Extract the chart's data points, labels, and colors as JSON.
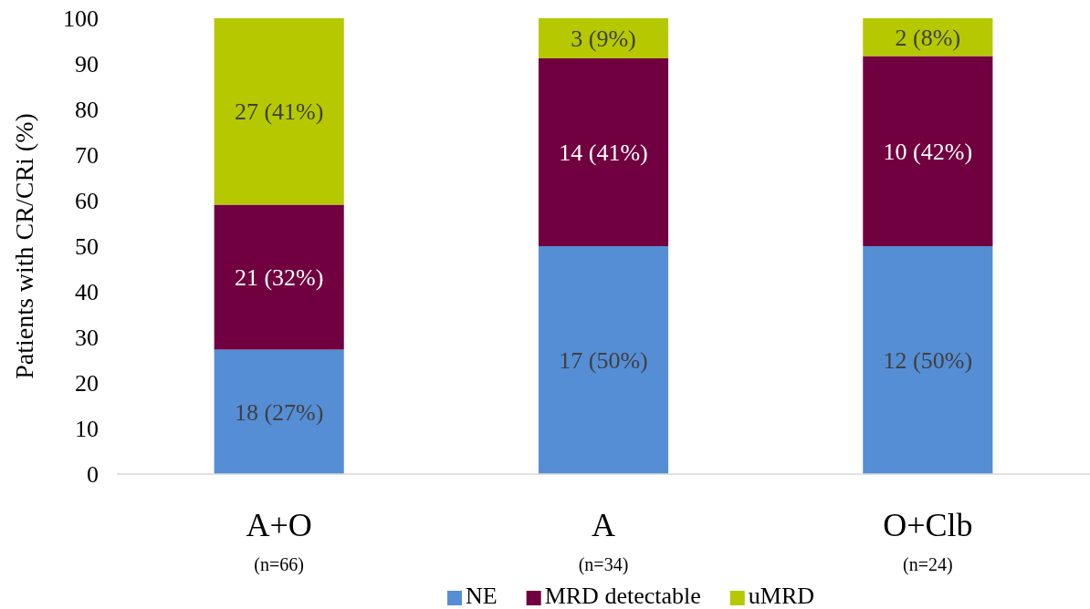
{
  "chart_data": {
    "type": "bar",
    "stacked": true,
    "ylabel": "Patients with CR/CRi (%)",
    "categories": [
      "A+O\n(n=66)",
      "A\n(n=34)",
      "O+Clb\n(n=24)"
    ],
    "series": [
      {
        "name": "NE",
        "color": "#558ed5",
        "values": [
          27.3,
          50,
          50
        ],
        "value_labels": [
          "18 (27%)",
          "17 (50%)",
          "12 (50%)"
        ]
      },
      {
        "name": "MRD detectable",
        "color": "#70003f",
        "values": [
          31.8,
          41.2,
          41.7
        ],
        "value_labels": [
          "21 (32%)",
          "14 (41%)",
          "10 (42%)"
        ]
      },
      {
        "name": "uMRD",
        "color": "#b5c800",
        "values": [
          40.9,
          8.8,
          8.3
        ],
        "value_labels": [
          "27 (41%)",
          "3 (9%)",
          "2 (8%)"
        ]
      }
    ],
    "ylim": [
      0,
      100
    ],
    "yticks": [
      0,
      10,
      20,
      30,
      40,
      50,
      60,
      70,
      80,
      90,
      100
    ],
    "grid": false,
    "legend": "bottom"
  }
}
